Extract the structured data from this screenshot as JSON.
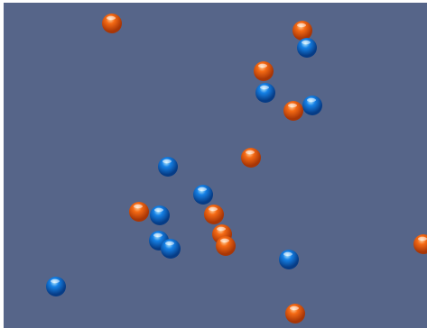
{
  "scene": {
    "background_color": "#566589",
    "balls": [
      {
        "kind": "orange"
      },
      {
        "kind": "orange"
      },
      {
        "kind": "blue"
      },
      {
        "kind": "orange"
      },
      {
        "kind": "blue"
      },
      {
        "kind": "blue"
      },
      {
        "kind": "orange"
      },
      {
        "kind": "orange"
      },
      {
        "kind": "blue"
      },
      {
        "kind": "blue"
      },
      {
        "kind": "orange"
      },
      {
        "kind": "blue"
      },
      {
        "kind": "orange"
      },
      {
        "kind": "orange"
      },
      {
        "kind": "blue"
      },
      {
        "kind": "blue"
      },
      {
        "kind": "orange"
      },
      {
        "kind": "orange"
      },
      {
        "kind": "blue"
      },
      {
        "kind": "blue"
      },
      {
        "kind": "orange"
      }
    ],
    "colors": {
      "orange": {
        "highlight": "#ffd3a0",
        "base": "#f56a14",
        "shadow": "#a83606"
      },
      "blue": {
        "highlight": "#b9ecff",
        "base": "#1581e6",
        "shadow": "#063c86"
      }
    }
  }
}
